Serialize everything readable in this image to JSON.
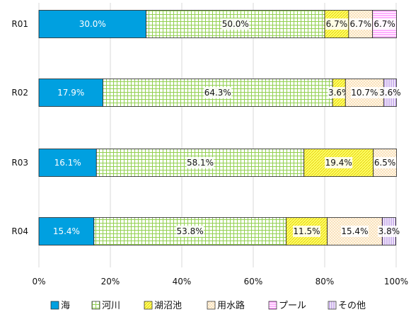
{
  "chart_data": {
    "type": "bar",
    "orientation": "horizontal",
    "stacked": true,
    "percent": true,
    "categories": [
      "R01",
      "R02",
      "R03",
      "R04"
    ],
    "series": [
      {
        "name": "海",
        "color": "#00a0e0",
        "pattern": "solid",
        "values": [
          30.0,
          17.9,
          16.1,
          15.4
        ],
        "labels": [
          "30.0%",
          "17.9%",
          "16.1%",
          "15.4%"
        ]
      },
      {
        "name": "河川",
        "color": "#92d050",
        "pattern": "grid",
        "values": [
          50.0,
          64.3,
          58.1,
          53.8
        ],
        "labels": [
          "50.0%",
          "64.3%",
          "58.1%",
          "53.8%"
        ]
      },
      {
        "name": "湖沼池",
        "color": "#ffff66",
        "pattern": "diagonal",
        "values": [
          6.7,
          3.6,
          19.4,
          11.5
        ],
        "labels": [
          "6.7%",
          "3.6%",
          "19.4%",
          "11.5%"
        ]
      },
      {
        "name": "用水路",
        "color": "#fde9c8",
        "pattern": "dots",
        "values": [
          6.7,
          10.7,
          6.5,
          15.4
        ],
        "labels": [
          "6.7%",
          "10.7%",
          "6.5%",
          "15.4%"
        ]
      },
      {
        "name": "プール",
        "color": "#ff99ff",
        "pattern": "hlines",
        "values": [
          6.7,
          0.0,
          0.0,
          0.0
        ],
        "labels": [
          "6.7%",
          "",
          "",
          ""
        ]
      },
      {
        "name": "その他",
        "color": "#b084e0",
        "pattern": "vlines",
        "values": [
          0.0,
          3.6,
          0.0,
          3.8
        ],
        "labels": [
          "",
          "3.6%",
          "",
          "3.8%"
        ]
      }
    ],
    "xlim": [
      0,
      100
    ],
    "xticks": [
      "0%",
      "20%",
      "40%",
      "60%",
      "80%",
      "100%"
    ],
    "grid": true,
    "legend": "bottom",
    "title": "",
    "xlabel": "",
    "ylabel": ""
  }
}
